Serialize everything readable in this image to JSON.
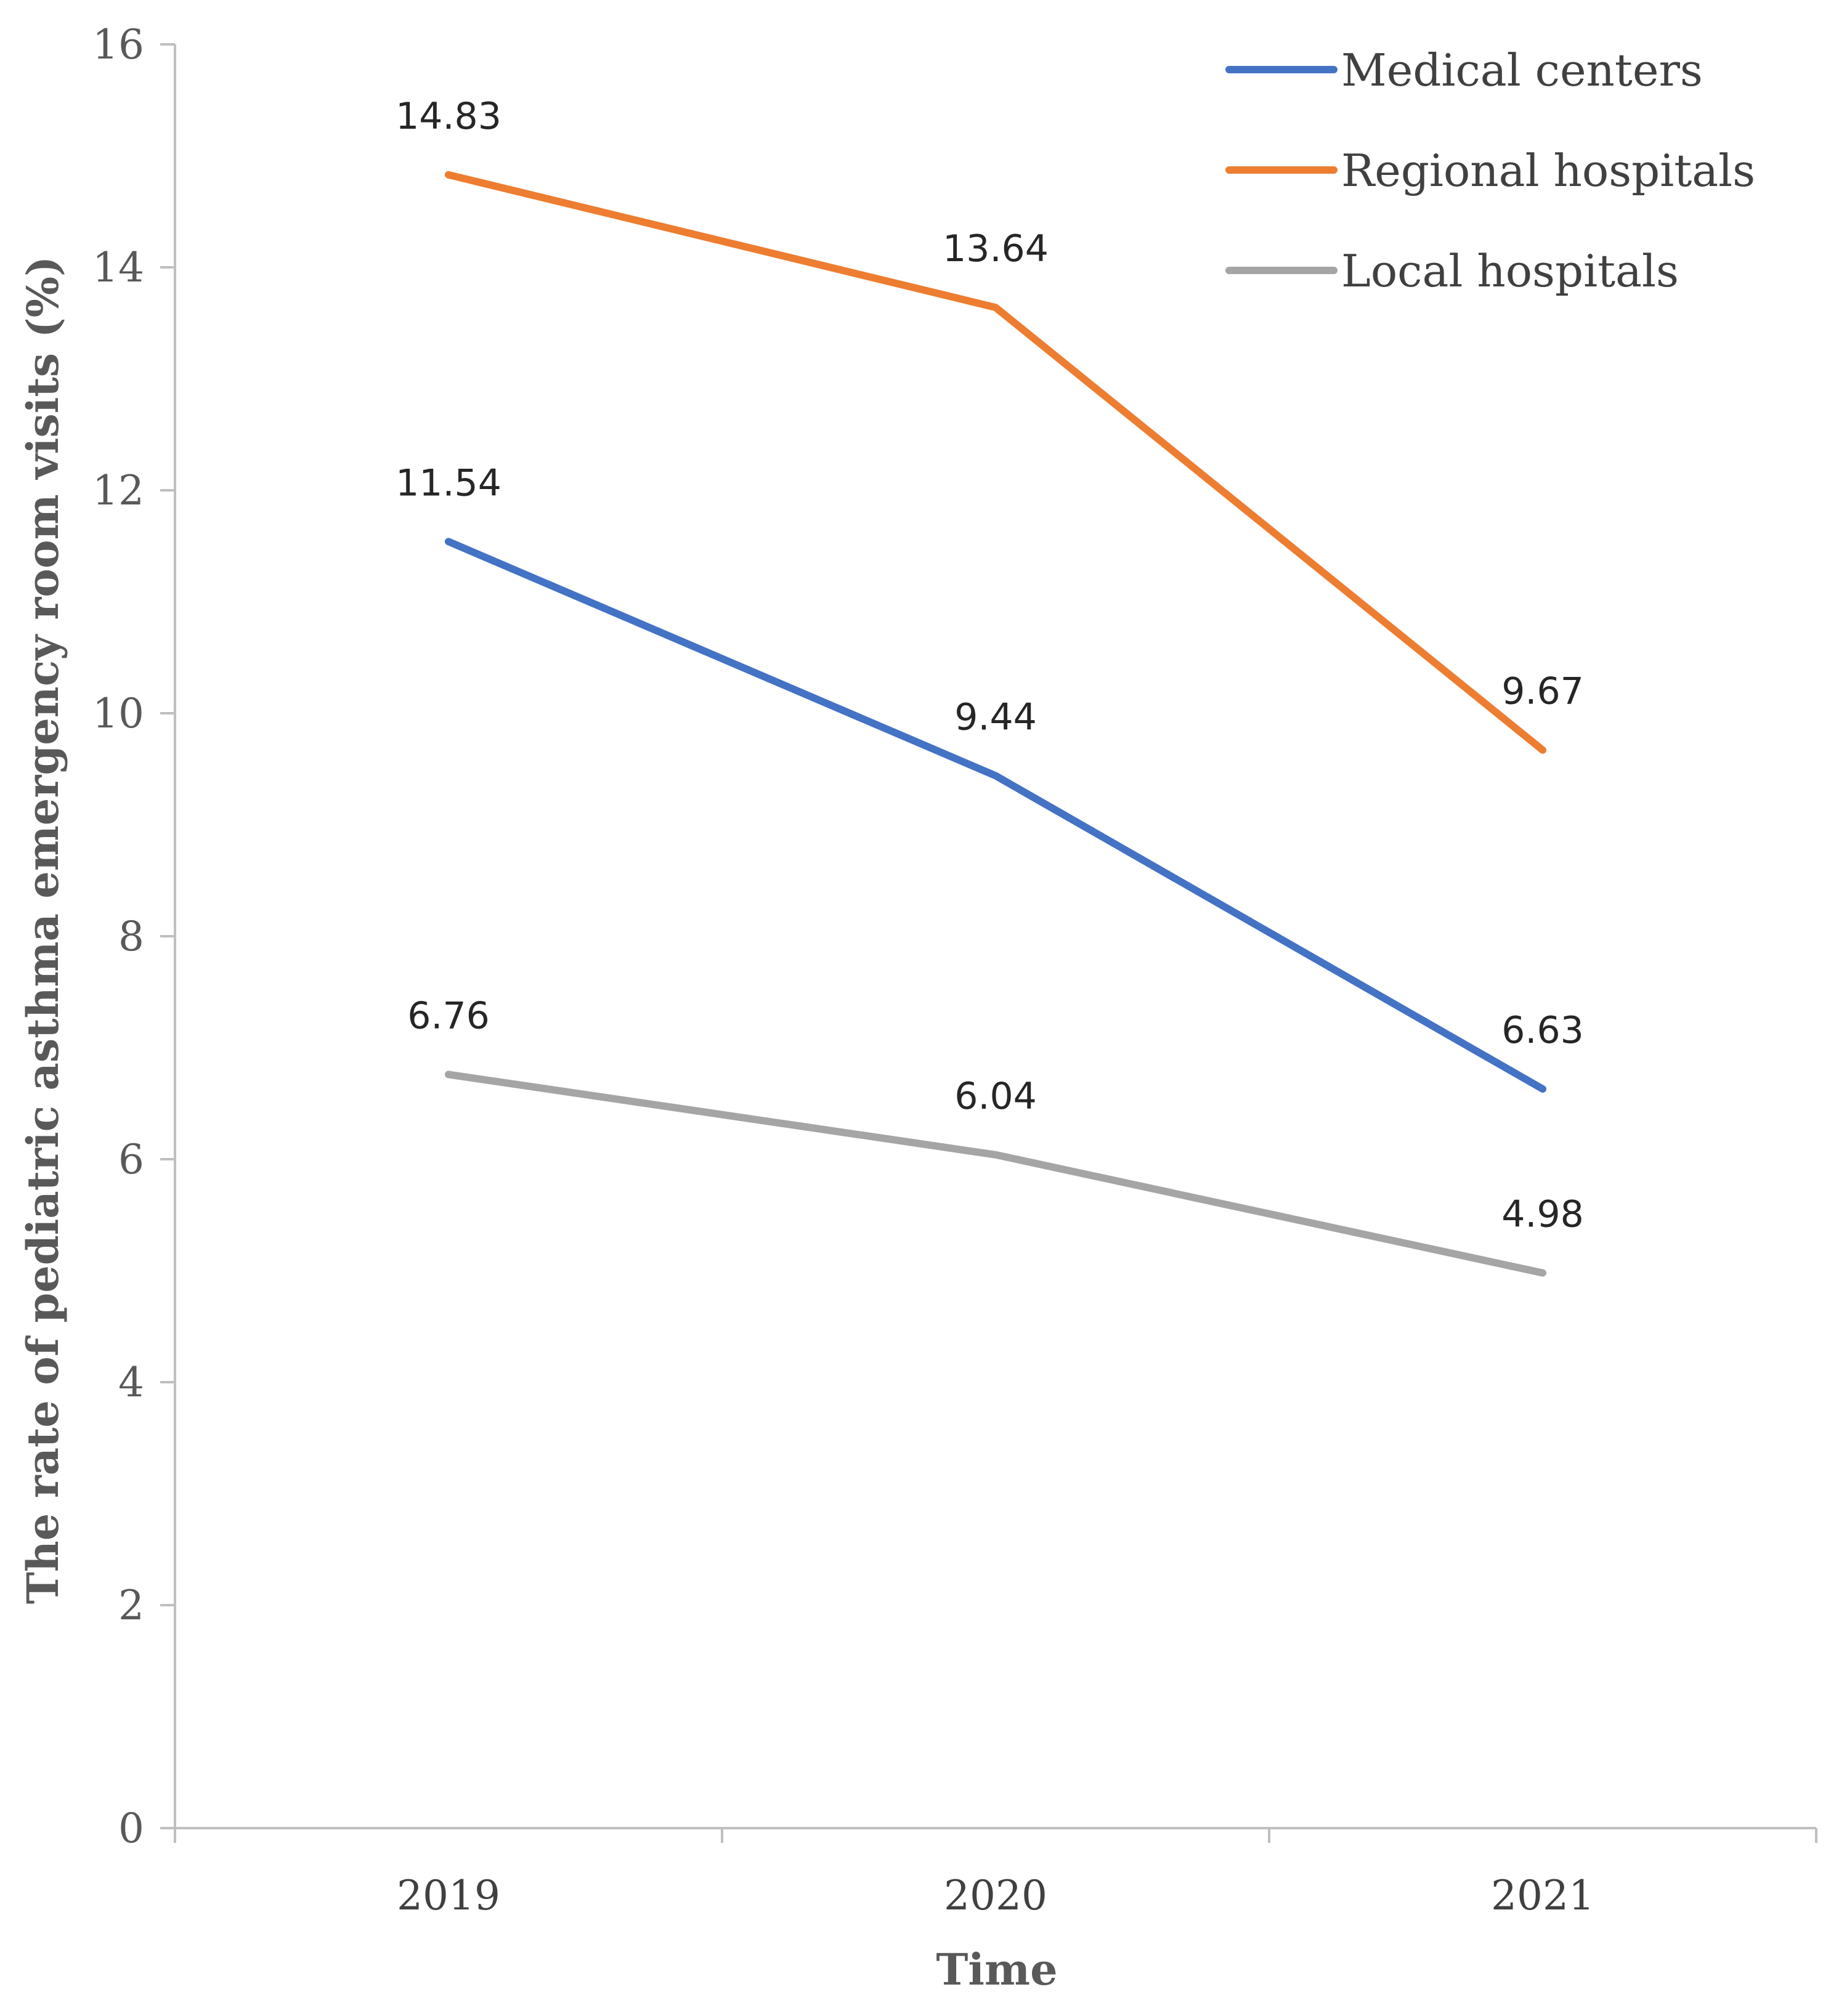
{
  "chart_data": {
    "type": "line",
    "categories": [
      "2019",
      "2020",
      "2021"
    ],
    "series": [
      {
        "name": "Medical centers",
        "color": "#4472C4",
        "values": [
          11.54,
          9.44,
          6.63
        ]
      },
      {
        "name": "Regional hospitals",
        "color": "#ED7D31",
        "values": [
          14.83,
          13.64,
          9.67
        ]
      },
      {
        "name": "Local hospitals",
        "color": "#A5A5A5",
        "values": [
          6.76,
          6.04,
          4.98
        ]
      }
    ],
    "data_labels": [
      [
        "11.54",
        "9.44",
        "6.63"
      ],
      [
        "14.83",
        "13.64",
        "9.67"
      ],
      [
        "6.76",
        "6.04",
        "4.98"
      ]
    ],
    "xlabel": "Time",
    "ylabel": "The rate of pediatric asthma emergency room visits (%)",
    "ylim": [
      0,
      16
    ],
    "yticks": [
      "0",
      "2",
      "4",
      "6",
      "8",
      "10",
      "12",
      "14",
      "16"
    ],
    "grid": false,
    "legend_position": "top-right"
  }
}
